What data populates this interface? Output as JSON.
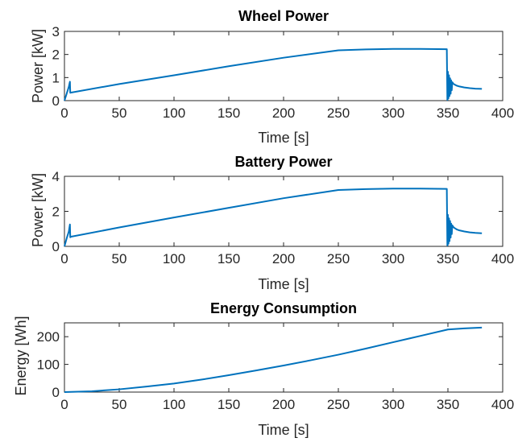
{
  "chart_data": [
    {
      "type": "line",
      "title": "Wheel Power",
      "xlabel": "Time [s]",
      "ylabel": "Power [kW]",
      "xlim": [
        0,
        400
      ],
      "ylim": [
        0,
        3
      ],
      "xticks": [
        0,
        50,
        100,
        150,
        200,
        250,
        300,
        350,
        400
      ],
      "yticks": [
        0,
        1,
        2,
        3
      ],
      "grid": false,
      "color": "#0072BD",
      "series": [
        {
          "x": [
            0,
            2,
            4,
            5,
            5.3,
            6,
            50,
            100,
            150,
            200,
            250,
            275,
            300,
            325,
            349,
            349.5,
            350,
            350.5,
            351,
            351.5,
            352,
            352.5,
            353,
            353.5,
            354,
            355,
            356,
            358,
            360,
            365,
            370,
            375,
            381
          ],
          "y": [
            0,
            0.3,
            0.6,
            0.82,
            0.34,
            0.35,
            0.72,
            1.1,
            1.49,
            1.86,
            2.18,
            2.22,
            2.24,
            2.24,
            2.23,
            0.03,
            1.25,
            0.1,
            1.1,
            0.2,
            0.97,
            0.3,
            0.88,
            0.45,
            0.8,
            0.73,
            0.7,
            0.65,
            0.62,
            0.57,
            0.54,
            0.52,
            0.51
          ]
        }
      ]
    },
    {
      "type": "line",
      "title": "Battery Power",
      "xlabel": "Time [s]",
      "ylabel": "Power [kW]",
      "xlim": [
        0,
        400
      ],
      "ylim": [
        0,
        4
      ],
      "xticks": [
        0,
        50,
        100,
        150,
        200,
        250,
        300,
        350,
        400
      ],
      "yticks": [
        0,
        2,
        4
      ],
      "grid": false,
      "color": "#0072BD",
      "series": [
        {
          "x": [
            0,
            2,
            4,
            5,
            5.3,
            6,
            50,
            100,
            150,
            200,
            250,
            275,
            300,
            325,
            349,
            349.5,
            350,
            350.5,
            351,
            351.5,
            352,
            352.5,
            353,
            353.5,
            354,
            355,
            356,
            358,
            360,
            365,
            370,
            375,
            381
          ],
          "y": [
            0,
            0.45,
            0.85,
            1.25,
            0.52,
            0.55,
            1.08,
            1.65,
            2.2,
            2.75,
            3.22,
            3.27,
            3.3,
            3.3,
            3.28,
            0.05,
            1.8,
            0.15,
            1.6,
            0.3,
            1.45,
            0.5,
            1.3,
            0.7,
            1.2,
            1.1,
            1.05,
            0.97,
            0.92,
            0.85,
            0.8,
            0.77,
            0.75
          ]
        }
      ]
    },
    {
      "type": "line",
      "title": "Energy Consumption",
      "xlabel": "Time [s]",
      "ylabel": "Energy [Wh]",
      "xlim": [
        0,
        400
      ],
      "ylim": [
        0,
        250
      ],
      "xticks": [
        0,
        50,
        100,
        150,
        200,
        250,
        300,
        350,
        400
      ],
      "yticks": [
        0,
        100,
        200
      ],
      "grid": false,
      "color": "#0072BD",
      "series": [
        {
          "x": [
            0,
            25,
            50,
            75,
            100,
            125,
            150,
            175,
            200,
            225,
            250,
            275,
            300,
            325,
            350,
            365,
            381
          ],
          "y": [
            0,
            3,
            10,
            20,
            31,
            45,
            61,
            78,
            96,
            115,
            135,
            157,
            180,
            203,
            226,
            230,
            233
          ]
        }
      ]
    }
  ]
}
